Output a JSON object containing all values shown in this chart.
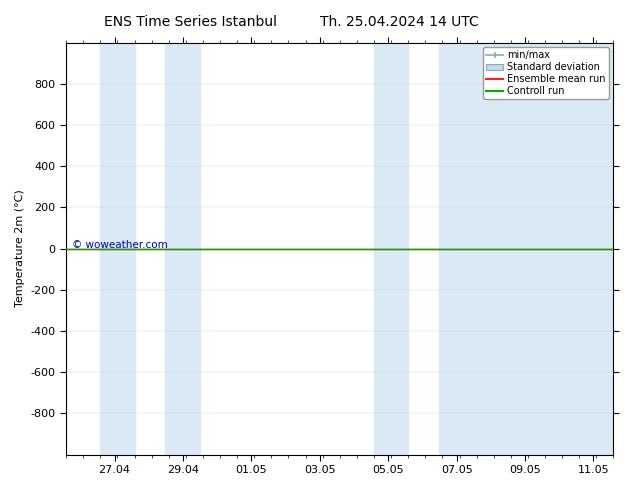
{
  "title": "ENS Time Series Istanbul",
  "subtitle": "Th. 25.04.2024 14 UTC",
  "ylabel": "Temperature 2m (°C)",
  "ylim_top": -1000,
  "ylim_bottom": 1000,
  "yticks": [
    -800,
    -600,
    -400,
    -200,
    0,
    200,
    400,
    600,
    800
  ],
  "bg_color": "#ffffff",
  "plot_bg_color": "#ffffff",
  "shaded_bands_color": "#daeaf5",
  "watermark": "© woweather.com",
  "watermark_color": "#0000cc",
  "line_y": 0,
  "ensemble_mean_color": "#ff2020",
  "control_run_color": "#00aa00",
  "std_dev_color": "#c8dce8",
  "minmax_color": "#8aaabb",
  "x_labels": [
    "27.04",
    "29.04",
    "01.05",
    "03.05",
    "05.05",
    "07.05",
    "09.05",
    "11.05"
  ],
  "x_tick_offsets": [
    1.4167,
    3.4167,
    5.4167,
    7.4167,
    9.4167,
    11.4167,
    13.4167,
    15.4167
  ],
  "x_min": 0,
  "x_max": 16.0,
  "shaded_columns": [
    {
      "start": 1.0,
      "end": 2.0
    },
    {
      "start": 2.9,
      "end": 3.9
    },
    {
      "start": 9.0,
      "end": 10.0
    },
    {
      "start": 10.9,
      "end": 16.1
    }
  ],
  "legend_items": [
    {
      "label": "min/max",
      "color": "#8aaabb",
      "type": "errorbar"
    },
    {
      "label": "Standard deviation",
      "color": "#c8dce8",
      "type": "box"
    },
    {
      "label": "Ensemble mean run",
      "color": "#ff2020",
      "type": "line"
    },
    {
      "label": "Controll run",
      "color": "#00aa00",
      "type": "line"
    }
  ],
  "font_size": 8,
  "title_font_size": 10
}
